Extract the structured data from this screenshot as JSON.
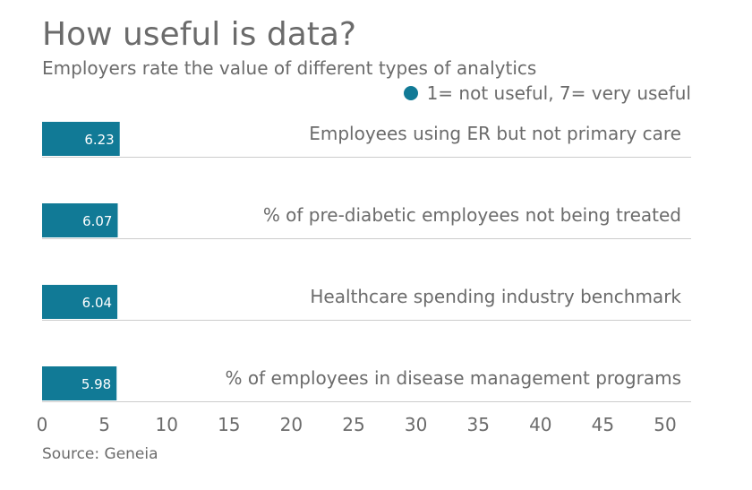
{
  "chart_data": {
    "type": "bar",
    "orientation": "horizontal",
    "title": "How useful is data?",
    "subtitle": "Employers rate the value of different types of analytics",
    "legend": [
      "1= not useful, 7= very useful"
    ],
    "categories": [
      "Employees using ER but not primary care",
      "% of pre-diabetic employees not being treated",
      "Healthcare spending industry benchmark",
      "% of employees in disease management programs"
    ],
    "values": [
      6.23,
      6.07,
      6.04,
      5.98
    ],
    "value_labels": [
      "6.23",
      "6.07",
      "6.04",
      "5.98"
    ],
    "xlim": [
      0,
      50
    ],
    "xticks": [
      0,
      5,
      10,
      15,
      20,
      25,
      30,
      35,
      40,
      45,
      50
    ],
    "xtick_labels": [
      "0",
      "5",
      "10",
      "15",
      "20",
      "25",
      "30",
      "35",
      "40",
      "45",
      "50"
    ],
    "source": "Source: Geneia"
  },
  "colors": {
    "bar": "#117a96",
    "text": "#6b6b6b",
    "separator": "#cccccc",
    "bar_label": "#ffffff"
  }
}
